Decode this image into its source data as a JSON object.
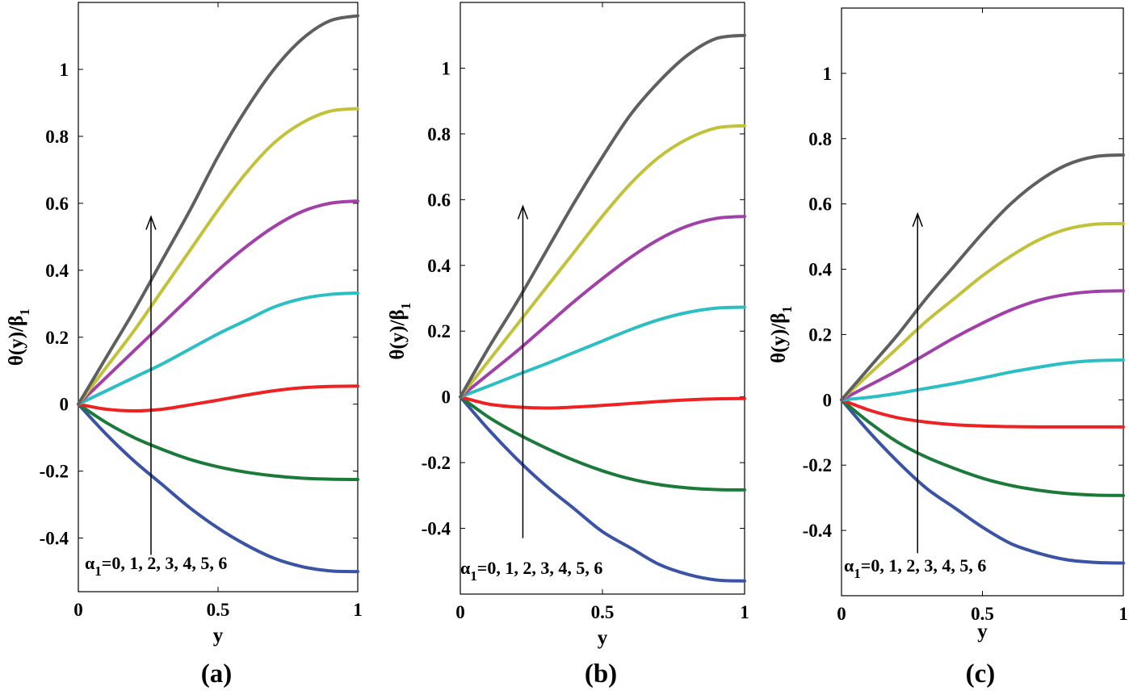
{
  "chart_data": [
    {
      "type": "line",
      "panel_label": "(a)",
      "xlabel": "y",
      "ylabel": "θ(y)/β",
      "ylabel_sub": "1",
      "xlim": [
        0,
        1
      ],
      "ylim": [
        -0.56,
        1.2
      ],
      "xticks": [
        0,
        0.5,
        1
      ],
      "xtick_labels": [
        "0",
        "0.5",
        "1"
      ],
      "yticks": [
        -0.4,
        -0.2,
        0,
        0.2,
        0.4,
        0.6,
        0.8,
        1
      ],
      "ytick_labels": [
        "-0.4",
        "-0.2",
        "0",
        "0.2",
        "0.4",
        "0.6",
        "0.8",
        "1"
      ],
      "annotation": {
        "symbol": "α",
        "sub": "1",
        "text": "=0, 1, 2, 3, 4, 5, 6",
        "arrow_x": 0.26,
        "arrow_y_from": -0.45,
        "arrow_y_to": 0.56
      },
      "x": [
        0,
        0.1,
        0.2,
        0.3,
        0.4,
        0.5,
        0.6,
        0.7,
        0.8,
        0.9,
        1
      ],
      "series": [
        {
          "name": "α1=0",
          "color": "#3a53a4",
          "values": [
            0,
            -0.09,
            -0.17,
            -0.24,
            -0.31,
            -0.37,
            -0.42,
            -0.46,
            -0.485,
            -0.498,
            -0.5
          ]
        },
        {
          "name": "α1=1",
          "color": "#1b7a3a",
          "values": [
            0,
            -0.055,
            -0.1,
            -0.135,
            -0.165,
            -0.187,
            -0.203,
            -0.214,
            -0.221,
            -0.224,
            -0.225
          ]
        },
        {
          "name": "α1=2",
          "color": "#ee2222",
          "values": [
            0,
            -0.015,
            -0.02,
            -0.015,
            -0.002,
            0.012,
            0.027,
            0.04,
            0.049,
            0.053,
            0.054
          ]
        },
        {
          "name": "α1=3",
          "color": "#2bbfc4",
          "values": [
            0,
            0.04,
            0.08,
            0.12,
            0.165,
            0.21,
            0.25,
            0.29,
            0.315,
            0.328,
            0.332
          ]
        },
        {
          "name": "α1=4",
          "color": "#a040a8",
          "values": [
            0,
            0.08,
            0.16,
            0.24,
            0.32,
            0.4,
            0.47,
            0.53,
            0.575,
            0.6,
            0.607
          ]
        },
        {
          "name": "α1=5",
          "color": "#c2c23a",
          "values": [
            0,
            0.11,
            0.22,
            0.34,
            0.46,
            0.58,
            0.69,
            0.78,
            0.84,
            0.875,
            0.883
          ]
        },
        {
          "name": "α1=6",
          "color": "#5f5f5f",
          "values": [
            0,
            0.14,
            0.28,
            0.43,
            0.58,
            0.74,
            0.88,
            1.0,
            1.09,
            1.145,
            1.16
          ]
        }
      ]
    },
    {
      "type": "line",
      "panel_label": "(b)",
      "xlabel": "y",
      "ylabel": "θ(y)/β",
      "ylabel_sub": "1",
      "xlim": [
        0,
        1
      ],
      "ylim": [
        -0.6,
        1.2
      ],
      "xticks": [
        0,
        0.5,
        1
      ],
      "xtick_labels": [
        "0",
        "0.5",
        "1"
      ],
      "yticks": [
        -0.4,
        -0.2,
        0,
        0.2,
        0.4,
        0.6,
        0.8,
        1
      ],
      "ytick_labels": [
        "-0.4",
        "-0.2",
        "0",
        "0.2",
        "0.4",
        "0.6",
        "0.8",
        "1"
      ],
      "annotation": {
        "symbol": "α",
        "sub": "1",
        "text": "=0, 1, 2, 3, 4, 5, 6",
        "arrow_x": 0.22,
        "arrow_y_from": -0.43,
        "arrow_y_to": 0.58
      },
      "x": [
        0,
        0.1,
        0.2,
        0.3,
        0.4,
        0.5,
        0.6,
        0.7,
        0.8,
        0.9,
        1
      ],
      "series": [
        {
          "name": "α1=0",
          "color": "#3a53a4",
          "values": [
            0,
            -0.1,
            -0.19,
            -0.27,
            -0.34,
            -0.41,
            -0.46,
            -0.51,
            -0.54,
            -0.557,
            -0.56
          ]
        },
        {
          "name": "α1=1",
          "color": "#1b7a3a",
          "values": [
            0,
            -0.062,
            -0.112,
            -0.155,
            -0.193,
            -0.225,
            -0.25,
            -0.267,
            -0.277,
            -0.282,
            -0.283
          ]
        },
        {
          "name": "α1=2",
          "color": "#ee2222",
          "values": [
            0,
            -0.022,
            -0.031,
            -0.034,
            -0.031,
            -0.026,
            -0.02,
            -0.014,
            -0.009,
            -0.006,
            -0.005
          ]
        },
        {
          "name": "α1=3",
          "color": "#2bbfc4",
          "values": [
            0,
            0.033,
            0.067,
            0.1,
            0.135,
            0.17,
            0.205,
            0.235,
            0.257,
            0.27,
            0.273
          ]
        },
        {
          "name": "α1=4",
          "color": "#a040a8",
          "values": [
            0,
            0.07,
            0.14,
            0.215,
            0.29,
            0.36,
            0.425,
            0.48,
            0.52,
            0.543,
            0.549
          ]
        },
        {
          "name": "α1=5",
          "color": "#c2c23a",
          "values": [
            0,
            0.11,
            0.22,
            0.33,
            0.44,
            0.55,
            0.65,
            0.73,
            0.785,
            0.818,
            0.825
          ]
        },
        {
          "name": "α1=6",
          "color": "#5f5f5f",
          "values": [
            0,
            0.15,
            0.29,
            0.44,
            0.59,
            0.73,
            0.86,
            0.96,
            1.04,
            1.09,
            1.1
          ]
        }
      ]
    },
    {
      "type": "line",
      "panel_label": "(c)",
      "xlabel": "y",
      "ylabel": "θ(y)/β",
      "ylabel_sub": "1",
      "xlim": [
        0,
        1
      ],
      "ylim": [
        -0.6,
        1.2
      ],
      "xticks": [
        0,
        0.5,
        1
      ],
      "xtick_labels": [
        "0",
        "0.5",
        "1"
      ],
      "yticks": [
        -0.4,
        -0.2,
        0,
        0.2,
        0.4,
        0.6,
        0.8,
        1
      ],
      "ytick_labels": [
        "-0.4",
        "-0.2",
        "0",
        "0.2",
        "0.4",
        "0.6",
        "0.8",
        "1"
      ],
      "annotation": {
        "symbol": "α",
        "sub": "1",
        "text": "=0, 1, 2, 3, 4, 5, 6",
        "arrow_x": 0.27,
        "arrow_y_from": -0.47,
        "arrow_y_to": 0.57
      },
      "x": [
        0,
        0.1,
        0.2,
        0.3,
        0.4,
        0.5,
        0.6,
        0.7,
        0.8,
        0.9,
        1
      ],
      "series": [
        {
          "name": "α1=0",
          "color": "#3a53a4",
          "values": [
            0,
            -0.1,
            -0.19,
            -0.27,
            -0.33,
            -0.39,
            -0.44,
            -0.47,
            -0.49,
            -0.498,
            -0.5
          ]
        },
        {
          "name": "α1=1",
          "color": "#1b7a3a",
          "values": [
            0,
            -0.07,
            -0.13,
            -0.175,
            -0.21,
            -0.24,
            -0.262,
            -0.277,
            -0.287,
            -0.292,
            -0.293
          ]
        },
        {
          "name": "α1=2",
          "color": "#ee2222",
          "values": [
            0,
            -0.032,
            -0.055,
            -0.068,
            -0.076,
            -0.08,
            -0.082,
            -0.083,
            -0.083,
            -0.083,
            -0.083
          ]
        },
        {
          "name": "α1=3",
          "color": "#2bbfc4",
          "values": [
            0,
            0.008,
            0.02,
            0.035,
            0.05,
            0.067,
            0.085,
            0.1,
            0.113,
            0.12,
            0.122
          ]
        },
        {
          "name": "α1=4",
          "color": "#a040a8",
          "values": [
            0,
            0.045,
            0.09,
            0.14,
            0.19,
            0.235,
            0.275,
            0.305,
            0.323,
            0.332,
            0.334
          ]
        },
        {
          "name": "α1=5",
          "color": "#c2c23a",
          "values": [
            0,
            0.08,
            0.16,
            0.24,
            0.31,
            0.38,
            0.44,
            0.49,
            0.523,
            0.538,
            0.54
          ]
        },
        {
          "name": "α1=6",
          "color": "#5f5f5f",
          "values": [
            0,
            0.1,
            0.2,
            0.31,
            0.41,
            0.51,
            0.6,
            0.67,
            0.72,
            0.745,
            0.75
          ]
        }
      ]
    }
  ]
}
